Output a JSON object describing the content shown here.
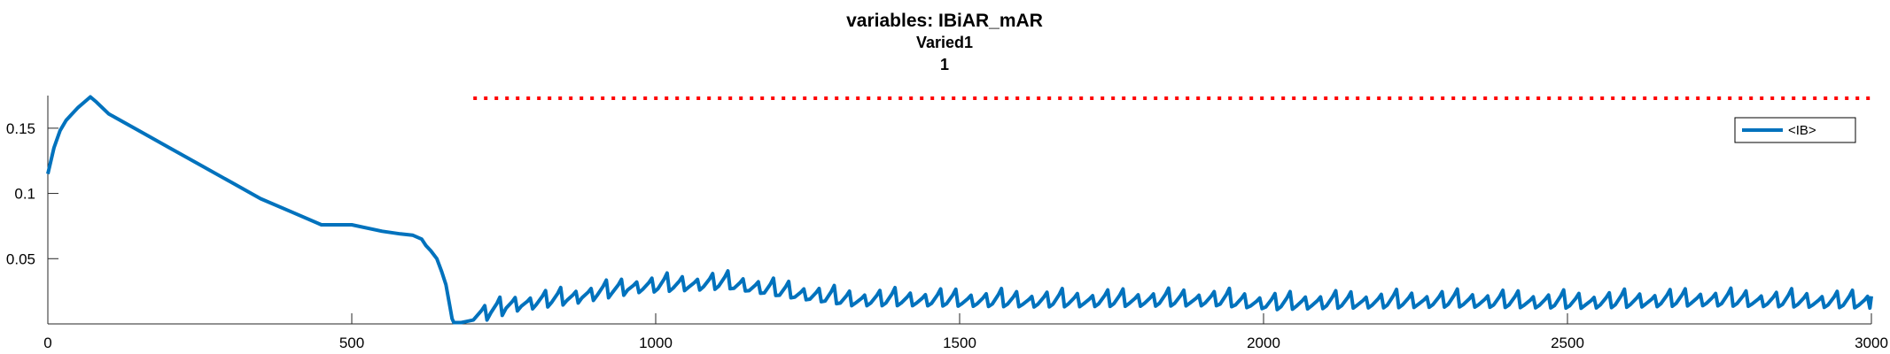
{
  "chart_data": {
    "type": "line",
    "title": "variables: IBiAR_mAR",
    "subtitle_lines": [
      "Varied1",
      "1"
    ],
    "xlabel": "",
    "ylabel": "",
    "xlim": [
      0,
      3000
    ],
    "ylim": [
      0,
      0.175
    ],
    "x_ticks": [
      0,
      500,
      1000,
      1500,
      2000,
      2500,
      3000
    ],
    "y_ticks": [
      0.05,
      0.1,
      0.15
    ],
    "y_tick_labels": [
      "0.05",
      "0.1",
      "0.15"
    ],
    "grid": false,
    "legend": {
      "position": "top-right",
      "entries": [
        "<IB>"
      ]
    },
    "reference_line": {
      "style": "dotted",
      "color": "#ff0000",
      "y": 0.173,
      "x_start": 700,
      "x_end": 3000
    },
    "series": [
      {
        "name": "<IB>",
        "color": "#0072bd",
        "segments": [
          {
            "x": [
              0,
              10,
              20,
              30,
              40,
              50,
              60,
              70,
              80,
              100,
              150,
              200,
              250,
              300,
              350,
              400,
              450,
              500,
              550,
              580,
              600,
              615,
              622,
              630,
              640,
              648,
              655,
              662,
              665,
              668,
              672,
              680,
              690,
              700
            ],
            "y": [
              0.115,
              0.135,
              0.148,
              0.156,
              0.161,
              0.166,
              0.17,
              0.174,
              0.17,
              0.161,
              0.148,
              0.135,
              0.122,
              0.109,
              0.096,
              0.086,
              0.076,
              0.076,
              0.071,
              0.069,
              0.068,
              0.065,
              0.06,
              0.056,
              0.05,
              0.04,
              0.03,
              0.012,
              0.004,
              0.001,
              0.001,
              0.001,
              0.002,
              0.003
            ]
          }
        ],
        "oscillation": {
          "x_start": 700,
          "x_end": 3000,
          "period": 25,
          "baseline": [
            [
              700,
              0.005
            ],
            [
              750,
              0.012
            ],
            [
              850,
              0.018
            ],
            [
              950,
              0.026
            ],
            [
              1100,
              0.029
            ],
            [
              1200,
              0.022
            ],
            [
              1300,
              0.016
            ],
            [
              1400,
              0.016
            ],
            [
              1600,
              0.015
            ],
            [
              1900,
              0.016
            ],
            [
              2000,
              0.013
            ],
            [
              2100,
              0.014
            ],
            [
              2300,
              0.015
            ],
            [
              2500,
              0.014
            ],
            [
              2700,
              0.016
            ],
            [
              3000,
              0.014
            ]
          ],
          "amplitude": 0.012
        }
      }
    ]
  }
}
